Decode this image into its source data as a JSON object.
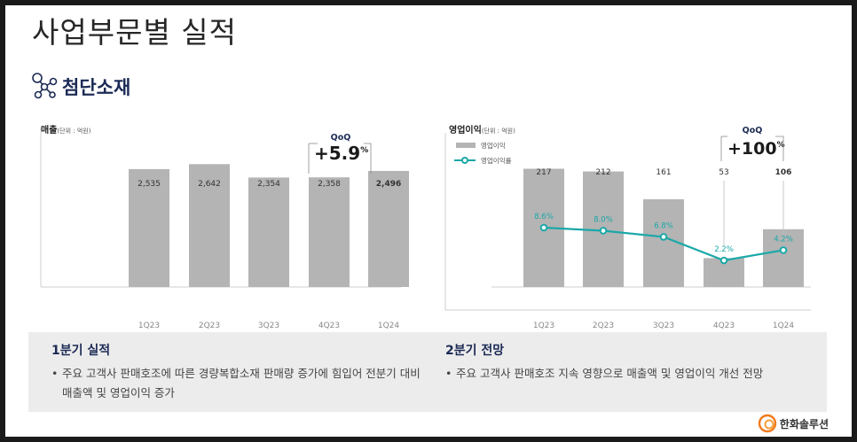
{
  "page_title": "사업부문별 실적",
  "section": {
    "title": "첨단소재",
    "icon": "molecule-icon"
  },
  "colors": {
    "bar": "#b4b4b4",
    "line": "#1aa8a8",
    "navy": "#1c2a55"
  },
  "chart_data": [
    {
      "type": "bar",
      "title": "매출",
      "unit": "(단위 : 억원)",
      "categories": [
        "1Q23",
        "2Q23",
        "3Q23",
        "4Q23",
        "1Q24"
      ],
      "values": [
        2535,
        2642,
        2354,
        2358,
        2496
      ],
      "value_labels": [
        "2,535",
        "2,642",
        "2,354",
        "2,358",
        "2,496"
      ],
      "ylim": [
        0,
        4000
      ],
      "grid": false,
      "qoq": {
        "label": "QoQ",
        "value": "+5.9",
        "suffix": "%"
      }
    },
    {
      "type": "bar+line",
      "title": "영업이익",
      "unit": "(단위 : 억원)",
      "categories": [
        "1Q23",
        "2Q23",
        "3Q23",
        "4Q23",
        "1Q24"
      ],
      "series": [
        {
          "name": "영업이익",
          "type": "bar",
          "values": [
            217,
            212,
            161,
            53,
            106
          ],
          "labels": [
            "217",
            "212",
            "161",
            "53",
            "106"
          ]
        },
        {
          "name": "영업이익률",
          "type": "line",
          "values": [
            8.6,
            8.0,
            6.8,
            2.2,
            4.2
          ],
          "labels": [
            "8.6%",
            "8.0%",
            "6.8%",
            "2.2%",
            "4.2%"
          ]
        }
      ],
      "legend": "top-left",
      "grid": false,
      "qoq": {
        "label": "QoQ",
        "value": "+100",
        "suffix": "%"
      }
    }
  ],
  "summary": {
    "q1": {
      "heading": "1분기 실적",
      "bullet_line1": "주요 고객사 판매호조에 따른 경량복합소재 판매량 증가에 힘입어 전분기 대비",
      "bullet_line2": "매출액 및 영업이익 증가"
    },
    "q2": {
      "heading": "2분기 전망",
      "bullet": "주요 고객사 판매호조 지속 영향으로 매출액 및 영업이익 개선 전망"
    }
  },
  "logo": {
    "text": "한화솔루션"
  }
}
